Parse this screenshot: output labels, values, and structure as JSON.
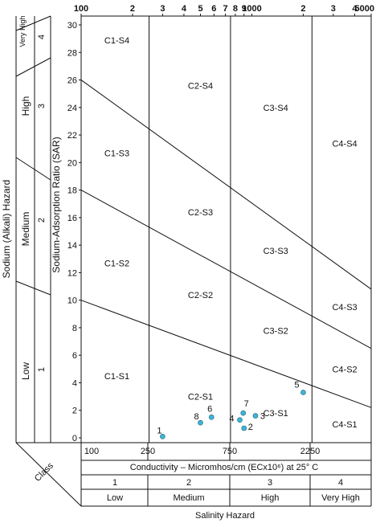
{
  "chart_data": {
    "type": "scatter",
    "title": "",
    "xaxis": {
      "label": "Conductivity – Micromhos/cm  (ECx10⁶) at 25° C",
      "scale": "log",
      "range": [
        100,
        5000
      ],
      "top_tick_labels": [
        "100",
        "2",
        "3",
        "4",
        "5",
        "6",
        "7",
        "8",
        "9",
        "1000",
        "2",
        "3",
        "4",
        "5000"
      ],
      "bottom_tick_labels": [
        "100",
        "250",
        "750",
        "2250"
      ]
    },
    "yaxis": {
      "label": "Sodium-Adsorption Ratio (SAR)",
      "range": [
        0,
        31
      ],
      "tick_labels": [
        "0",
        "2",
        "4",
        "6",
        "8",
        "10",
        "12",
        "14",
        "16",
        "18",
        "20",
        "22",
        "24",
        "26",
        "28",
        "30"
      ]
    },
    "grid": false,
    "boundary_lines": [
      {
        "name": "S1-S2",
        "x": [
          100,
          5000
        ],
        "y": [
          10,
          2.2
        ]
      },
      {
        "name": "S2-S3",
        "x": [
          100,
          5000
        ],
        "y": [
          18,
          6.5
        ]
      },
      {
        "name": "S3-S4",
        "x": [
          100,
          5000
        ],
        "y": [
          26,
          10.8
        ]
      }
    ],
    "region_labels": [
      {
        "text": "C1-S4",
        "x": 162,
        "y": 28.9
      },
      {
        "text": "C2-S4",
        "x": 500,
        "y": 25.6
      },
      {
        "text": "C3-S4",
        "x": 1380,
        "y": 24.0
      },
      {
        "text": "C4-S4",
        "x": 3500,
        "y": 21.4
      },
      {
        "text": "C1-S3",
        "x": 162,
        "y": 20.7
      },
      {
        "text": "C2-S3",
        "x": 500,
        "y": 16.4
      },
      {
        "text": "C3-S3",
        "x": 1380,
        "y": 13.6
      },
      {
        "text": "C4-S3",
        "x": 3500,
        "y": 9.5
      },
      {
        "text": "C1-S2",
        "x": 162,
        "y": 12.7
      },
      {
        "text": "C2-S2",
        "x": 500,
        "y": 10.4
      },
      {
        "text": "C3-S2",
        "x": 1380,
        "y": 7.8
      },
      {
        "text": "C4-S2",
        "x": 3500,
        "y": 5.0
      },
      {
        "text": "C1-S1",
        "x": 162,
        "y": 4.5
      },
      {
        "text": "C2-S1",
        "x": 500,
        "y": 3.0
      },
      {
        "text": "C3-S1",
        "x": 1380,
        "y": 1.8
      },
      {
        "text": "C4-S1",
        "x": 3500,
        "y": 1.0
      }
    ],
    "points": [
      {
        "label": "1",
        "x": 300,
        "y": 0.1
      },
      {
        "label": "2",
        "x": 900,
        "y": 0.7
      },
      {
        "label": "3",
        "x": 1050,
        "y": 1.6
      },
      {
        "label": "4",
        "x": 850,
        "y": 1.3
      },
      {
        "label": "5",
        "x": 2000,
        "y": 3.3
      },
      {
        "label": "6",
        "x": 580,
        "y": 1.5
      },
      {
        "label": "7",
        "x": 890,
        "y": 1.8
      },
      {
        "label": "8",
        "x": 500,
        "y": 1.1
      }
    ],
    "point_color": "#3fb5d6"
  },
  "labels": {
    "y_outer_title": "Sodium (Alkali) Hazard",
    "sodium_classes": [
      {
        "name": "Very High",
        "number": "4"
      },
      {
        "name": "High",
        "number": "3"
      },
      {
        "name": "Medium",
        "number": "2"
      },
      {
        "name": "Low",
        "number": "1"
      }
    ],
    "class_label": "Class",
    "salinity_title": "Salinity Hazard",
    "salinity_classes": [
      {
        "number": "1",
        "name": "Low"
      },
      {
        "number": "2",
        "name": "Medium"
      },
      {
        "number": "3",
        "name": "High"
      },
      {
        "number": "4",
        "name": "Very High"
      }
    ]
  }
}
